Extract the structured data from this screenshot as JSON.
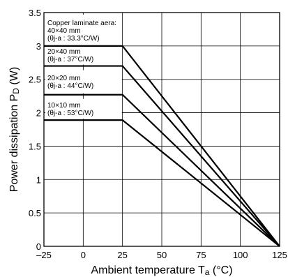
{
  "chart_data": {
    "type": "line",
    "xlabel_main": "Ambient temperature T",
    "xlabel_sub": "a",
    "xlabel_unit": " (°C)",
    "ylabel_main": "Power dissipation P",
    "ylabel_sub": "D",
    "ylabel_unit": " (W)",
    "xlim": [
      -25,
      125
    ],
    "ylim": [
      0,
      3.5
    ],
    "xticks": [
      -25,
      0,
      25,
      50,
      75,
      100,
      125
    ],
    "xtick_labels": [
      "–25",
      "0",
      "25",
      "50",
      "75",
      "100",
      "125"
    ],
    "yticks": [
      0,
      0.5,
      1,
      1.5,
      2,
      2.5,
      3,
      3.5
    ],
    "ytick_labels": [
      "0",
      "0.5",
      "1",
      "1.5",
      "2",
      "2.5",
      "3",
      "3.5"
    ],
    "grid": true,
    "series": [
      {
        "x": [
          -25,
          25,
          125
        ],
        "y": [
          3.0,
          3.0,
          0
        ]
      },
      {
        "x": [
          -25,
          25,
          125
        ],
        "y": [
          2.7,
          2.7,
          0
        ]
      },
      {
        "x": [
          -25,
          25,
          125
        ],
        "y": [
          2.27,
          2.27,
          0
        ]
      },
      {
        "x": [
          -25,
          25,
          125
        ],
        "y": [
          1.89,
          1.89,
          0
        ]
      }
    ],
    "annotations": [
      {
        "lines": [
          "Copper laminate aera:",
          "40×40 mm",
          "(θj-a : 33.3°C/W)"
        ]
      },
      {
        "lines": [
          "20×40 mm",
          "(θj-a : 37°C/W)"
        ]
      },
      {
        "lines": [
          "20×20 mm",
          "(θj-a : 44°C/W)"
        ]
      },
      {
        "lines": [
          "10×10 mm",
          "(θj-a : 53°C/W)"
        ]
      }
    ]
  }
}
